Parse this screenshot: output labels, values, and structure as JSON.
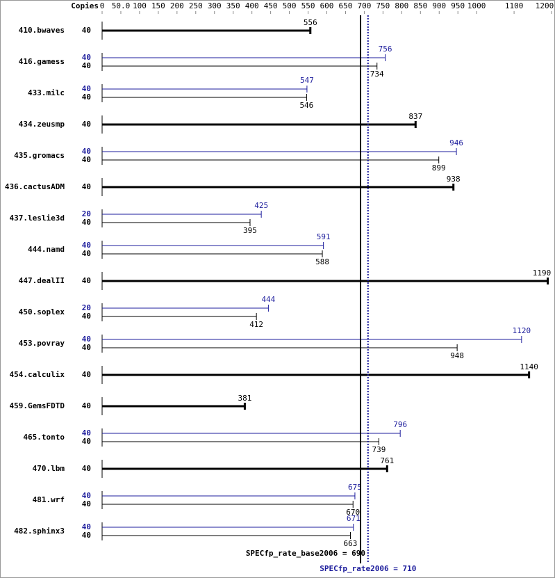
{
  "chart_data": {
    "type": "bar",
    "orientation": "horizontal",
    "copies_header": "Copies",
    "categories": [
      "410.bwaves",
      "416.gamess",
      "433.milc",
      "434.zeusmp",
      "435.gromacs",
      "436.cactusADM",
      "437.leslie3d",
      "444.namd",
      "447.dealII",
      "450.soplex",
      "453.povray",
      "454.calculix",
      "459.GemsFDTD",
      "465.tonto",
      "470.lbm",
      "481.wrf",
      "482.sphinx3"
    ],
    "series": [
      {
        "color": "#1c1c9c",
        "values": [
          null,
          756,
          547,
          null,
          946,
          null,
          425,
          591,
          null,
          444,
          1120,
          null,
          null,
          796,
          null,
          675,
          671
        ],
        "copies": [
          null,
          40,
          40,
          null,
          40,
          null,
          20,
          40,
          null,
          20,
          40,
          null,
          null,
          40,
          null,
          40,
          40
        ]
      },
      {
        "color": "#000000",
        "values": [
          556,
          734,
          546,
          837,
          899,
          938,
          395,
          588,
          1190,
          412,
          948,
          1140,
          381,
          739,
          761,
          670,
          663
        ],
        "copies": [
          40,
          40,
          40,
          40,
          40,
          40,
          40,
          40,
          40,
          40,
          40,
          40,
          40,
          40,
          40,
          40,
          40
        ]
      }
    ],
    "xlim": [
      0,
      1200
    ],
    "xticks": [
      0,
      {
        "value": 50,
        "label": "50.0"
      },
      100,
      150,
      200,
      250,
      300,
      350,
      400,
      450,
      500,
      550,
      600,
      650,
      700,
      750,
      800,
      850,
      900,
      950,
      1000,
      1100,
      1200
    ],
    "reference_lines": [
      {
        "label": "SPECfp_rate_base2006 =",
        "value": 690,
        "color": "#000000",
        "style": "solid"
      },
      {
        "label": "SPECfp_rate2006 =",
        "value": 710,
        "color": "#1c1c9c",
        "style": "dotted"
      }
    ]
  }
}
